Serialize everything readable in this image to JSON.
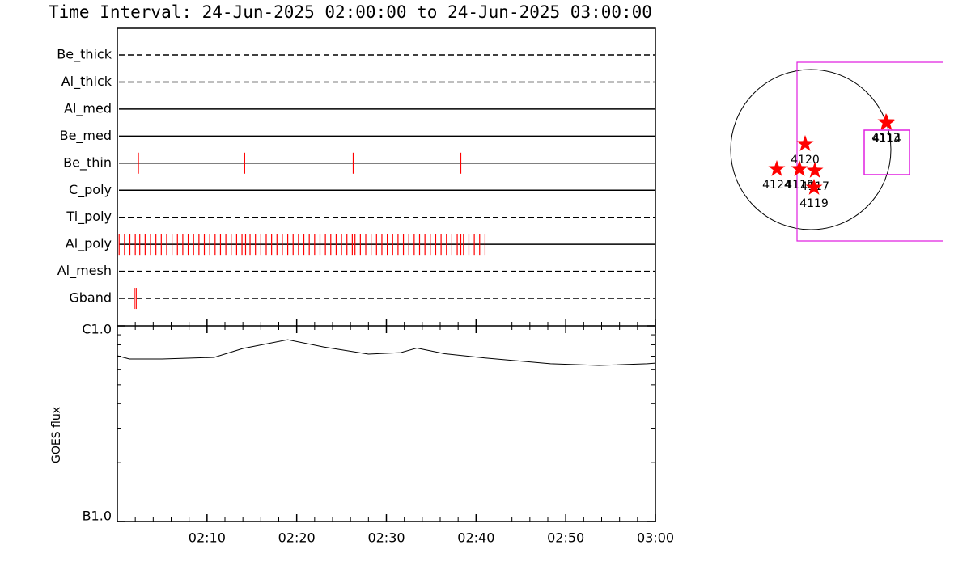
{
  "title": "Time Interval: 24-Jun-2025 02:00:00 to 24-Jun-2025 03:00:00",
  "chart_data": [
    {
      "type": "event",
      "categories": [
        "Be_thick",
        "Al_thick",
        "Al_med",
        "Be_med",
        "Be_thin",
        "C_poly",
        "Ti_poly",
        "Al_poly",
        "Al_mesh",
        "Gband"
      ],
      "line_styles": [
        "dashed",
        "dashed",
        "solid",
        "solid",
        "solid",
        "solid",
        "dashed",
        "solid",
        "dashed",
        "dashed"
      ],
      "events": [
        [],
        [],
        [],
        [],
        [
          2.35,
          14.2,
          26.3,
          38.3
        ],
        [],
        [],
        [
          0.2,
          0.8,
          1.4,
          2.0,
          2.5,
          3.1,
          3.7,
          4.3,
          4.9,
          5.5,
          6.1,
          6.7,
          7.3,
          7.9,
          8.5,
          9.1,
          9.7,
          10.3,
          10.9,
          11.5,
          12.1,
          12.7,
          13.3,
          13.9,
          14.3,
          14.8,
          15.4,
          16.0,
          16.6,
          17.2,
          17.8,
          18.4,
          19.0,
          19.6,
          20.2,
          20.8,
          21.4,
          22.0,
          22.6,
          23.2,
          23.8,
          24.4,
          25.0,
          25.6,
          26.2,
          26.5,
          27.1,
          27.7,
          28.3,
          28.9,
          29.5,
          30.1,
          30.7,
          31.3,
          31.9,
          32.5,
          33.1,
          33.7,
          34.3,
          34.9,
          35.5,
          36.1,
          36.7,
          37.3,
          37.9,
          38.3,
          38.6,
          39.2,
          39.8,
          40.4,
          41.0
        ],
        [],
        [
          1.9,
          2.1
        ]
      ],
      "color": "#ff0000",
      "xlim": [
        0,
        60
      ]
    },
    {
      "type": "line",
      "y_label": "GOES flux",
      "x": [
        0,
        1.35,
        5,
        10.8,
        14,
        19,
        23,
        28,
        31.6,
        33.4,
        36.5,
        41,
        48.3,
        53.7,
        59.1,
        60
      ],
      "values": [
        7.03e-07,
        6.77e-07,
        6.77e-07,
        6.9e-07,
        7.66e-07,
        8.5e-07,
        7.8e-07,
        7.17e-07,
        7.3e-07,
        7.7e-07,
        7.2e-07,
        6.85e-07,
        6.4e-07,
        6.27e-07,
        6.4e-07,
        6.45e-07
      ],
      "color": "#000000",
      "log_scale": true,
      "xlim": [
        0,
        60
      ],
      "xticks": [
        {
          "value": 10,
          "label": "02:10"
        },
        {
          "value": 20,
          "label": "02:20"
        },
        {
          "value": 30,
          "label": "02:30"
        },
        {
          "value": 40,
          "label": "02:40"
        },
        {
          "value": 50,
          "label": "02:50"
        },
        {
          "value": 60,
          "label": "03:00"
        }
      ],
      "xminorticks": [
        2,
        4,
        6,
        8,
        12,
        14,
        16,
        18,
        22,
        24,
        26,
        28,
        32,
        34,
        36,
        38,
        42,
        44,
        46,
        48,
        52,
        54,
        56,
        58
      ],
      "ylim": [
        1e-07,
        1e-06
      ],
      "yticks": [
        {
          "value": 1e-07,
          "label": "B1.0"
        },
        {
          "value": 1e-06,
          "label": "C1.0"
        }
      ],
      "yminorticks": [
        2e-07,
        3e-07,
        4e-07,
        5e-07,
        6e-07,
        7e-07,
        8e-07,
        9e-07
      ]
    },
    {
      "type": "scatter",
      "labels": [
        "4124",
        "4118",
        "4117",
        "4119",
        "4120",
        "4113",
        "4114"
      ],
      "x": [
        -408,
        -136,
        49,
        39,
        -68,
        903,
        912
      ],
      "values": [
        -233,
        -233,
        -252,
        -456,
        68,
        330,
        320
      ],
      "color": "#ff0000"
    }
  ]
}
